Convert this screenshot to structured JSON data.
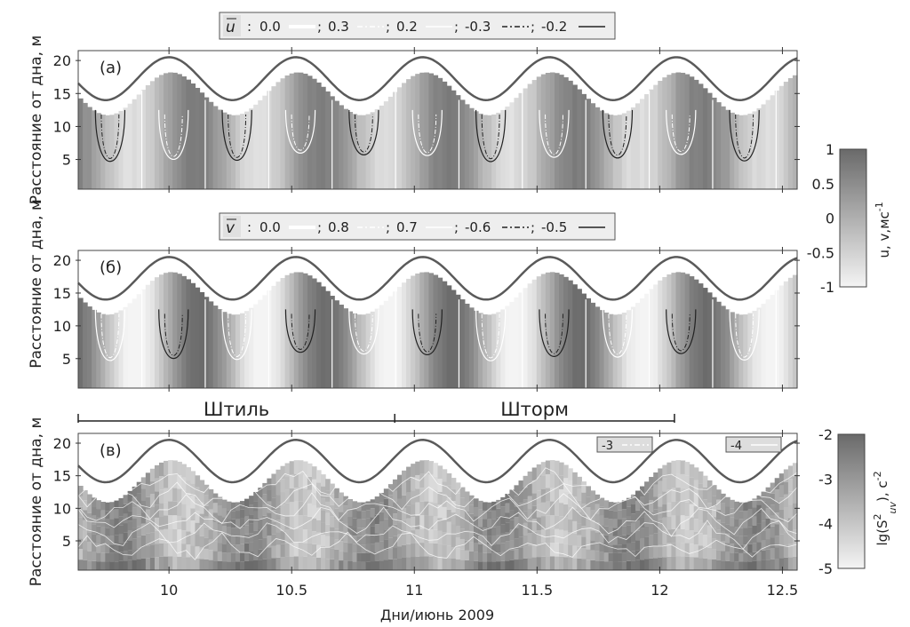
{
  "chart_data": [
    {
      "id": "a",
      "type": "heatmap",
      "panel_label": "(а)",
      "ylabel": "Расстояние от дна, м",
      "yticks": [
        5,
        10,
        15,
        20
      ],
      "ylim": [
        0.5,
        21.5
      ],
      "legend": {
        "symbol": "u",
        "sep": ":",
        "entries": [
          {
            "value": "0.0",
            "style": "white-solid",
            "sep": ";"
          },
          {
            "value": "0.3",
            "style": "white-dashdot",
            "sep": ";"
          },
          {
            "value": "0.2",
            "style": "white-thin",
            "sep": ";"
          },
          {
            "value": "-0.3",
            "style": "black-dashdot",
            "sep": ";"
          },
          {
            "value": "-0.2",
            "style": "black-solid",
            "sep": ""
          }
        ]
      }
    },
    {
      "id": "b",
      "type": "heatmap",
      "panel_label": "(б)",
      "ylabel": "Расстояние от дна, м",
      "yticks": [
        5,
        10,
        15,
        20
      ],
      "ylim": [
        0.5,
        21.5
      ],
      "legend": {
        "symbol": "v",
        "sep": ":",
        "entries": [
          {
            "value": "0.0",
            "style": "white-solid",
            "sep": ";"
          },
          {
            "value": "0.8",
            "style": "white-dashdot",
            "sep": ";"
          },
          {
            "value": "0.7",
            "style": "white-thin",
            "sep": ";"
          },
          {
            "value": "-0.6",
            "style": "black-dashdot",
            "sep": ";"
          },
          {
            "value": "-0.5",
            "style": "black-solid",
            "sep": ""
          }
        ]
      }
    },
    {
      "id": "c",
      "type": "heatmap",
      "panel_label": "(в)",
      "ylabel": "Расстояние от дна, м",
      "yticks": [
        5,
        10,
        15,
        20
      ],
      "ylim": [
        0.5,
        21.5
      ],
      "legend_boxes": [
        "-3",
        "-4"
      ]
    }
  ],
  "xaxis": {
    "label": "Дни/июнь 2009",
    "ticks": [
      "10",
      "10.5",
      "11",
      "11.5",
      "12",
      "12.5"
    ],
    "tick_values": [
      10,
      10.5,
      11,
      11.5,
      12,
      12.5
    ],
    "xlim": [
      9.63,
      12.56
    ]
  },
  "surface": {
    "mean_m": 17.25,
    "amplitude_m": 3.25,
    "period_days": 0.517,
    "phase_day": 10.0
  },
  "regimes": [
    {
      "label": "Штиль",
      "from": 9.63,
      "to": 10.92
    },
    {
      "label": "Шторм",
      "from": 10.92,
      "to": 12.06
    }
  ],
  "colorbars": [
    {
      "label_main": "u, v",
      "label_unit": ",мс",
      "label_exp": "-1",
      "ticks": [
        "1",
        "0.5",
        "0",
        "-0.5",
        "-1"
      ],
      "range": [
        -1,
        1
      ]
    },
    {
      "label_main": "lg(S",
      "label_sup": "2",
      "label_sub": "uv",
      "label_unit": "), с",
      "label_exp": "-2",
      "ticks": [
        "-2",
        "-3",
        "-4",
        "-5"
      ],
      "range": [
        -5,
        -2
      ]
    }
  ],
  "colors": {
    "dark": "#6a6a6a",
    "light": "#f4f4f4",
    "surface_line": "#5a5a5a"
  }
}
